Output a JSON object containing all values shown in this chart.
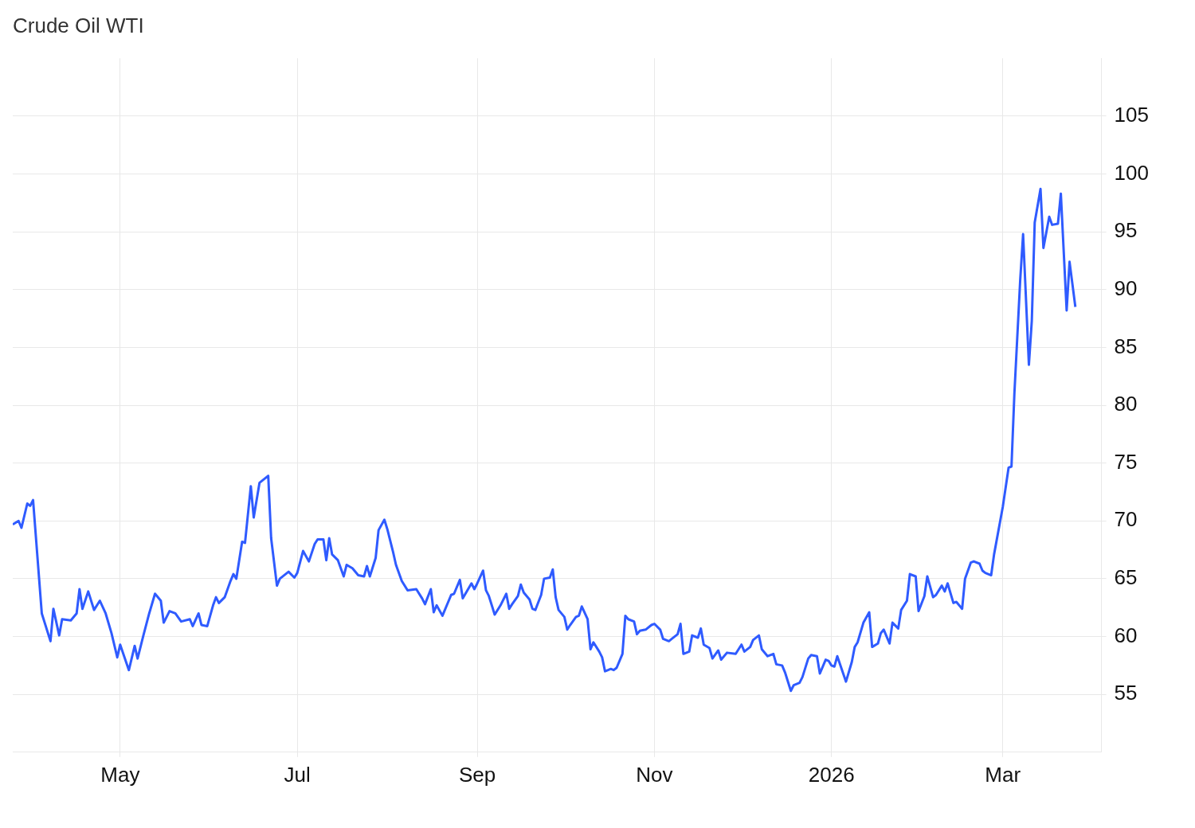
{
  "chart_data": {
    "type": "line",
    "title": "Crude Oil WTI",
    "x": [
      "2025-03-25",
      "2025-03-27",
      "2025-03-28",
      "2025-03-30",
      "2025-03-31",
      "2025-04-01",
      "2025-04-04",
      "2025-04-07",
      "2025-04-08",
      "2025-04-10",
      "2025-04-11",
      "2025-04-14",
      "2025-04-16",
      "2025-04-17",
      "2025-04-18",
      "2025-04-20",
      "2025-04-22",
      "2025-04-24",
      "2025-04-26",
      "2025-04-28",
      "2025-04-30",
      "2025-05-01",
      "2025-05-04",
      "2025-05-06",
      "2025-05-07",
      "2025-05-09",
      "2025-05-11",
      "2025-05-13",
      "2025-05-15",
      "2025-05-16",
      "2025-05-18",
      "2025-05-20",
      "2025-05-22",
      "2025-05-25",
      "2025-05-26",
      "2025-05-28",
      "2025-05-29",
      "2025-05-31",
      "2025-06-02",
      "2025-06-03",
      "2025-06-04",
      "2025-06-06",
      "2025-06-08",
      "2025-06-09",
      "2025-06-10",
      "2025-06-12",
      "2025-06-13",
      "2025-06-15",
      "2025-06-16",
      "2025-06-18",
      "2025-06-21",
      "2025-06-22",
      "2025-06-24",
      "2025-06-25",
      "2025-06-28",
      "2025-06-30",
      "2025-07-01",
      "2025-07-03",
      "2025-07-05",
      "2025-07-07",
      "2025-07-08",
      "2025-07-10",
      "2025-07-11",
      "2025-07-12",
      "2025-07-13",
      "2025-07-15",
      "2025-07-17",
      "2025-07-18",
      "2025-07-20",
      "2025-07-22",
      "2025-07-24",
      "2025-07-25",
      "2025-07-26",
      "2025-07-28",
      "2025-07-29",
      "2025-07-31",
      "2025-08-01",
      "2025-08-03",
      "2025-08-04",
      "2025-08-06",
      "2025-08-08",
      "2025-08-11",
      "2025-08-13",
      "2025-08-14",
      "2025-08-16",
      "2025-08-17",
      "2025-08-18",
      "2025-08-20",
      "2025-08-23",
      "2025-08-24",
      "2025-08-26",
      "2025-08-27",
      "2025-08-30",
      "2025-08-31",
      "2025-09-01",
      "2025-09-03",
      "2025-09-04",
      "2025-09-05",
      "2025-09-07",
      "2025-09-09",
      "2025-09-11",
      "2025-09-12",
      "2025-09-13",
      "2025-09-15",
      "2025-09-16",
      "2025-09-17",
      "2025-09-19",
      "2025-09-20",
      "2025-09-21",
      "2025-09-23",
      "2025-09-24",
      "2025-09-26",
      "2025-09-27",
      "2025-09-28",
      "2025-09-29",
      "2025-10-01",
      "2025-10-02",
      "2025-10-03",
      "2025-10-05",
      "2025-10-06",
      "2025-10-07",
      "2025-10-09",
      "2025-10-10",
      "2025-10-11",
      "2025-10-13",
      "2025-10-14",
      "2025-10-15",
      "2025-10-17",
      "2025-10-18",
      "2025-10-19",
      "2025-10-21",
      "2025-10-22",
      "2025-10-23",
      "2025-10-25",
      "2025-10-26",
      "2025-10-27",
      "2025-10-29",
      "2025-10-31",
      "2025-11-01",
      "2025-11-03",
      "2025-11-04",
      "2025-11-06",
      "2025-11-07",
      "2025-11-09",
      "2025-11-10",
      "2025-11-11",
      "2025-11-13",
      "2025-11-14",
      "2025-11-16",
      "2025-11-17",
      "2025-11-18",
      "2025-11-20",
      "2025-11-21",
      "2025-11-23",
      "2025-11-24",
      "2025-11-26",
      "2025-11-29",
      "2025-12-01",
      "2025-12-02",
      "2025-12-04",
      "2025-12-05",
      "2025-12-07",
      "2025-12-08",
      "2025-12-10",
      "2025-12-12",
      "2025-12-13",
      "2025-12-15",
      "2025-12-16",
      "2025-12-18",
      "2025-12-19",
      "2025-12-21",
      "2025-12-22",
      "2025-12-24",
      "2025-12-25",
      "2025-12-27",
      "2025-12-28",
      "2025-12-30",
      "2025-12-31",
      "2026-01-01",
      "2026-01-02",
      "2026-01-03",
      "2026-01-06",
      "2026-01-08",
      "2026-01-09",
      "2026-01-10",
      "2026-01-12",
      "2026-01-14",
      "2026-01-15",
      "2026-01-17",
      "2026-01-18",
      "2026-01-19",
      "2026-01-21",
      "2026-01-22",
      "2026-01-24",
      "2026-01-25",
      "2026-01-27",
      "2026-01-28",
      "2026-01-30",
      "2026-01-31",
      "2026-02-02",
      "2026-02-03",
      "2026-02-05",
      "2026-02-06",
      "2026-02-08",
      "2026-02-09",
      "2026-02-10",
      "2026-02-12",
      "2026-02-13",
      "2026-02-15",
      "2026-02-16",
      "2026-02-18",
      "2026-02-19",
      "2026-02-21",
      "2026-02-22",
      "2026-02-23",
      "2026-02-25",
      "2026-02-26",
      "2026-03-01",
      "2026-03-03",
      "2026-03-04",
      "2026-03-05",
      "2026-03-07",
      "2026-03-08",
      "2026-03-10",
      "2026-03-11",
      "2026-03-12",
      "2026-03-14",
      "2026-03-15",
      "2026-03-17",
      "2026-03-18",
      "2026-03-20",
      "2026-03-21",
      "2026-03-23",
      "2026-03-24",
      "2026-03-26"
    ],
    "series": [
      {
        "color": "#2f5bff",
        "values": [
          69.7,
          70.0,
          69.4,
          71.5,
          71.3,
          71.8,
          62,
          59.6,
          62.4,
          60.1,
          61.5,
          61.4,
          62,
          64.1,
          62.4,
          63.9,
          62.3,
          63.1,
          62,
          60.3,
          58.2,
          59.3,
          57.1,
          59.2,
          58.1,
          60.1,
          62,
          63.7,
          63.1,
          61.2,
          62.2,
          62,
          61.3,
          61.5,
          60.9,
          62,
          61,
          60.9,
          62.7,
          63.4,
          62.9,
          63.4,
          64.8,
          65.4,
          65,
          68.2,
          68.1,
          73,
          70.3,
          73.3,
          73.9,
          68.5,
          64.4,
          65,
          65.6,
          65.1,
          65.5,
          67.4,
          66.5,
          68,
          68.4,
          68.4,
          66.6,
          68.5,
          67.1,
          66.6,
          65.2,
          66.2,
          65.9,
          65.3,
          65.2,
          66.1,
          65.2,
          66.8,
          69.2,
          70.1,
          69.3,
          67.3,
          66.2,
          64.8,
          64,
          64.1,
          63.3,
          62.8,
          64.1,
          62.1,
          62.7,
          61.8,
          63.6,
          63.7,
          64.9,
          63.3,
          64.6,
          64.1,
          64.6,
          65.7,
          64,
          63.5,
          61.9,
          62.7,
          63.7,
          62.4,
          62.8,
          63.5,
          64.5,
          63.8,
          63.2,
          62.4,
          62.3,
          63.6,
          65,
          65.1,
          65.8,
          63.4,
          62.3,
          61.7,
          60.6,
          61,
          61.7,
          61.8,
          62.6,
          61.5,
          58.9,
          59.5,
          58.7,
          58.2,
          57,
          57.2,
          57.1,
          57.3,
          58.5,
          61.8,
          61.5,
          61.3,
          60.2,
          60.5,
          60.6,
          61,
          61.1,
          60.6,
          59.8,
          59.6,
          59.8,
          60.2,
          61.1,
          58.5,
          58.7,
          60.1,
          59.9,
          60.7,
          59.3,
          59,
          58.1,
          58.8,
          58,
          58.6,
          58.5,
          59.3,
          58.7,
          59.1,
          59.7,
          60.1,
          58.9,
          58.3,
          58.5,
          57.6,
          57.5,
          56.9,
          55.3,
          55.8,
          56,
          56.5,
          58.1,
          58.4,
          58.3,
          56.8,
          58,
          57.9,
          57.5,
          57.4,
          58.3,
          56.1,
          57.8,
          59.1,
          59.5,
          61.2,
          62.1,
          59.1,
          59.4,
          60.3,
          60.6,
          59.4,
          61.2,
          60.7,
          62.3,
          63.1,
          65.4,
          65.2,
          62.2,
          63.5,
          65.2,
          63.4,
          63.6,
          64.4,
          63.9,
          64.6,
          62.9,
          63,
          62.4,
          65,
          66.4,
          66.5,
          66.3,
          65.7,
          65.5,
          65.3,
          67.1,
          71.2,
          74.6,
          74.7,
          81,
          90.8,
          94.8,
          83.5,
          87.3,
          95.8,
          98.7,
          93.6,
          96.3,
          95.6,
          95.7,
          98.3,
          88.2,
          92.4,
          88.5
        ]
      }
    ],
    "xlim": [
      "2025-03-25",
      "2026-04-04"
    ],
    "xticks": [
      {
        "value": "2025-05-01",
        "label": "May"
      },
      {
        "value": "2025-07-01",
        "label": "Jul"
      },
      {
        "value": "2025-09-01",
        "label": "Sep"
      },
      {
        "value": "2025-11-01",
        "label": "Nov"
      },
      {
        "value": "2026-01-01",
        "label": "2026"
      },
      {
        "value": "2026-03-01",
        "label": "Mar"
      }
    ],
    "ylim": [
      50,
      110
    ],
    "yticks": [
      55,
      60,
      65,
      70,
      75,
      80,
      85,
      90,
      95,
      100,
      105
    ],
    "grid": true
  }
}
